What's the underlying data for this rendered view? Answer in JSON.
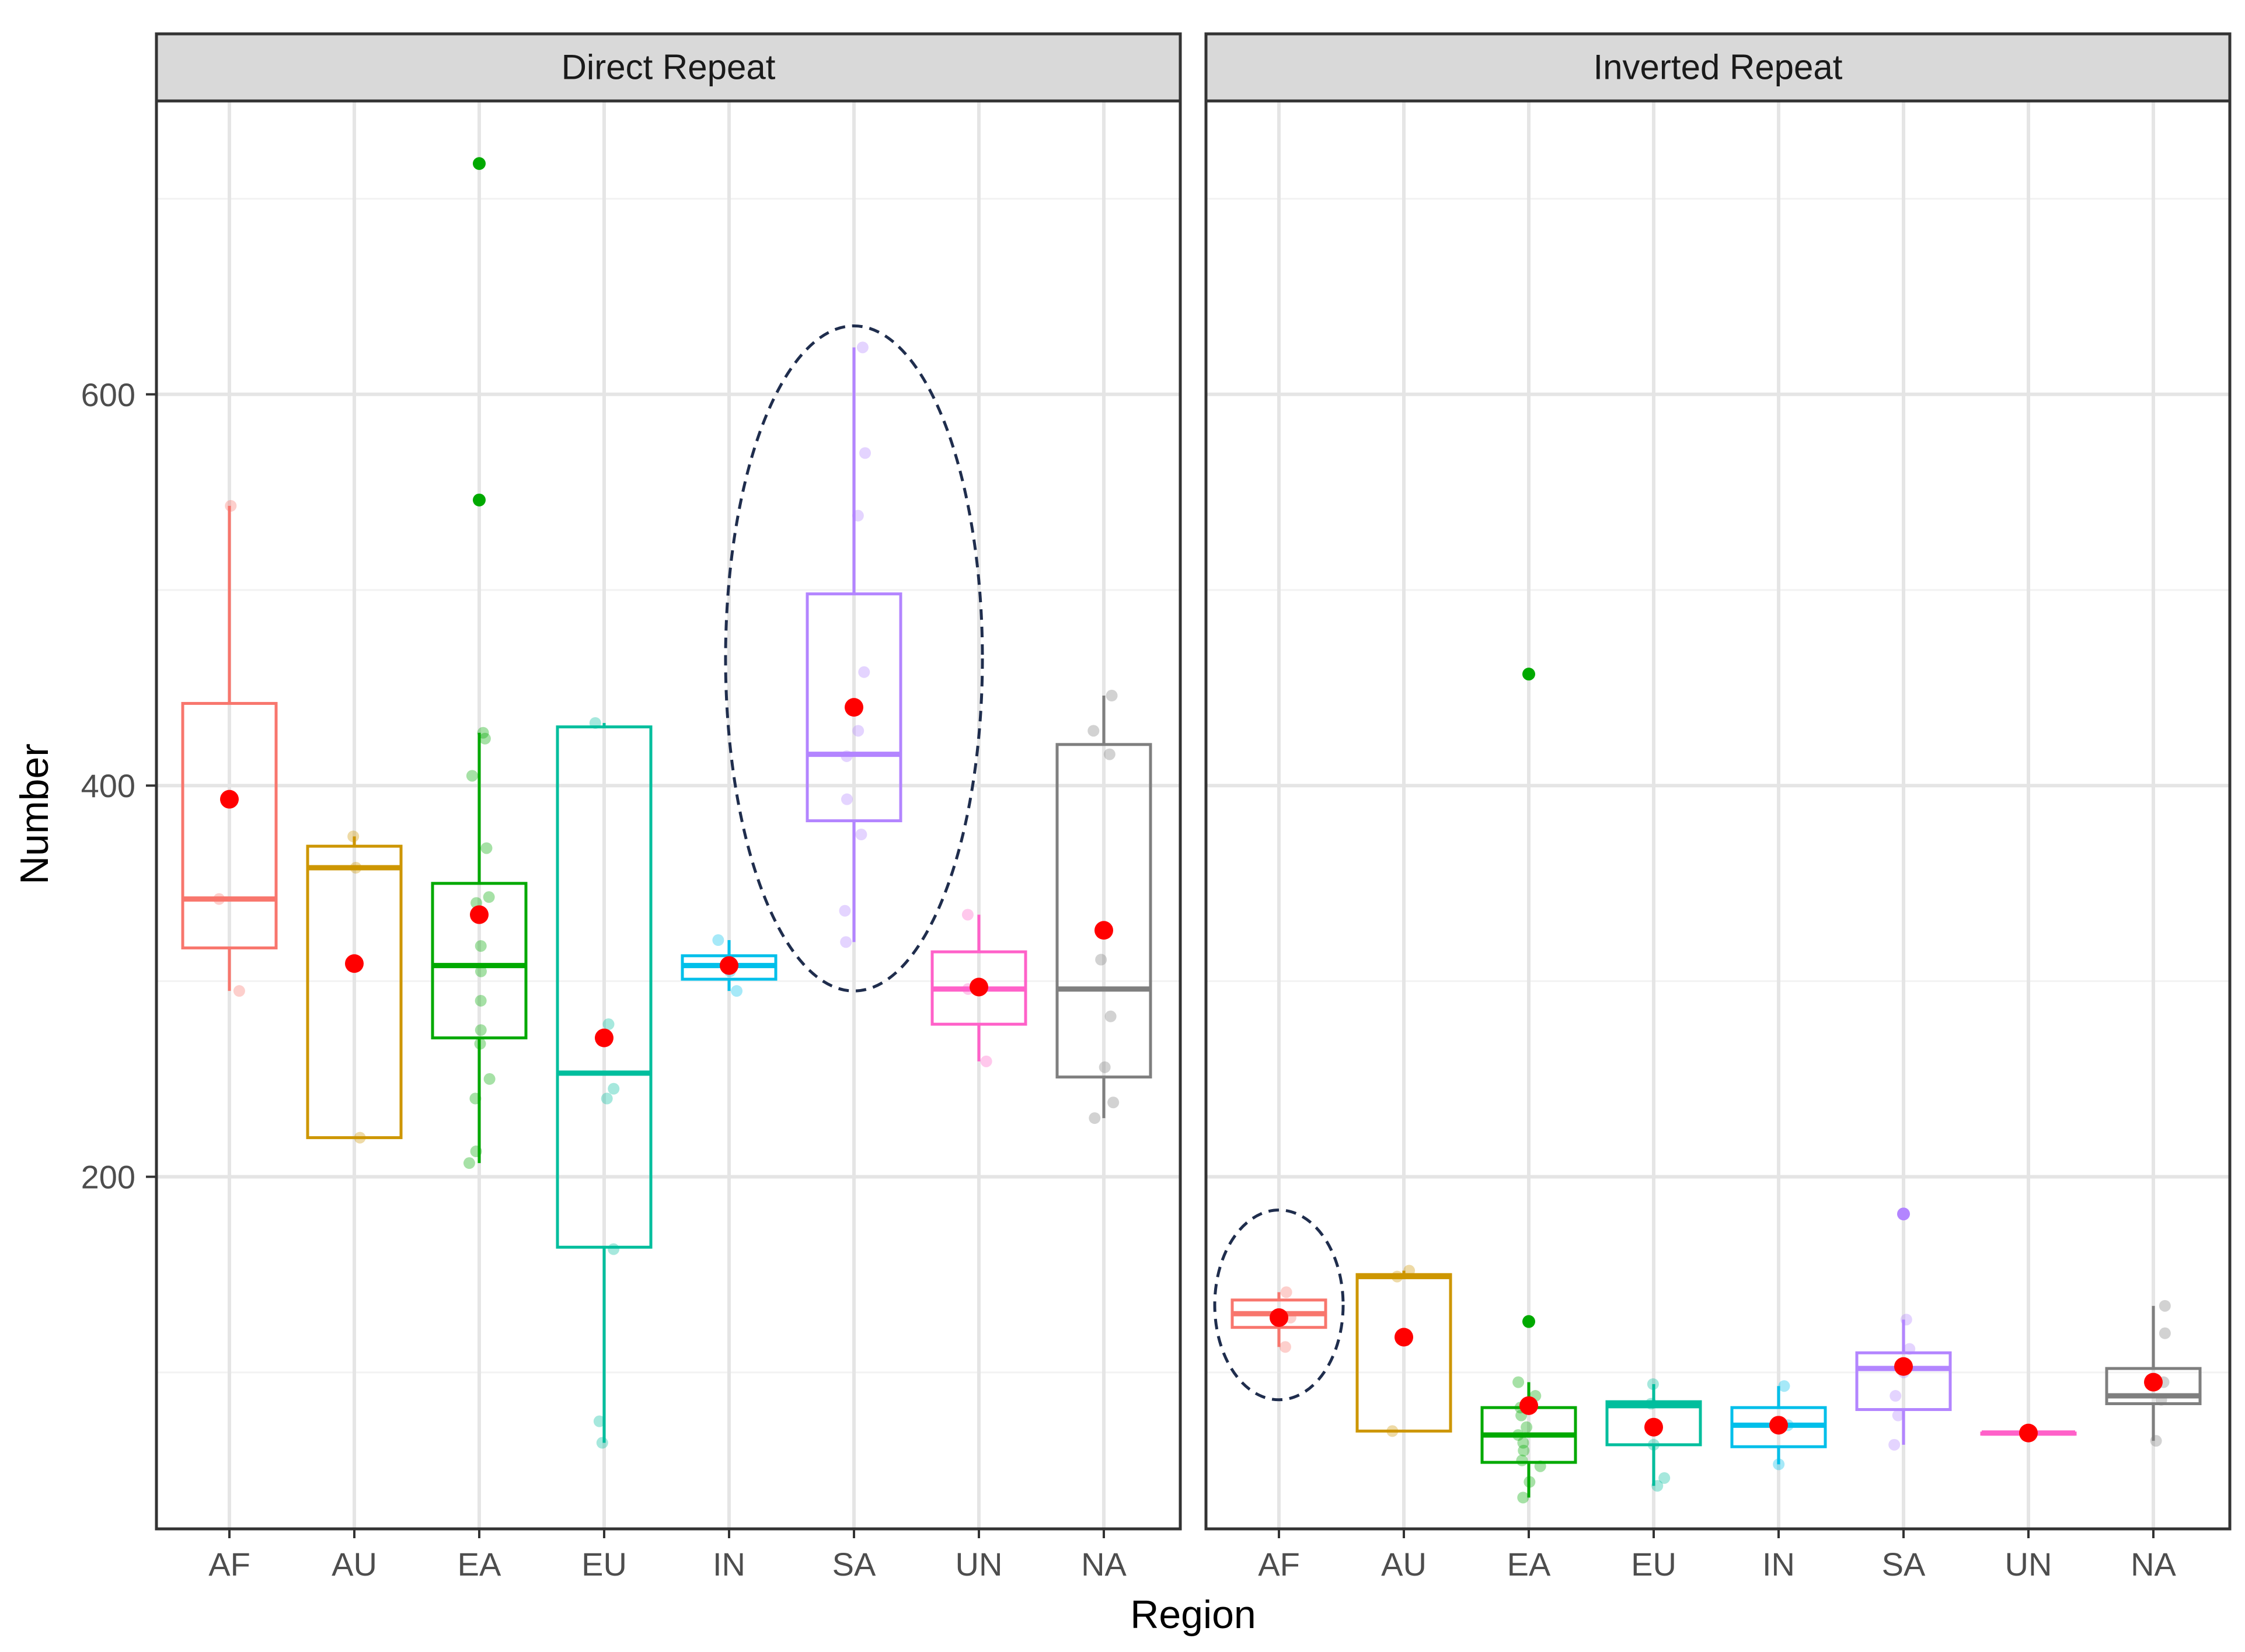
{
  "chart_data": {
    "type": "boxplot",
    "xlabel": "Region",
    "ylabel": "Number",
    "ylim": [
      20,
      750
    ],
    "y_ticks": [
      200,
      400,
      600
    ],
    "categories": [
      "AF",
      "AU",
      "EA",
      "EU",
      "IN",
      "SA",
      "UN",
      "NA"
    ],
    "colors": {
      "AF": "#f8766d",
      "AU": "#cd9600",
      "EA": "#00a900",
      "EU": "#00be9d",
      "IN": "#00bfea",
      "SA": "#b385ff",
      "UN": "#ff61c9",
      "NA": "#7f7f7f"
    },
    "mean_color": "#ff0000",
    "highlight_color": "#1f2d4d",
    "panels": [
      {
        "title": "Direct Repeat",
        "groups": [
          {
            "region": "AF",
            "lower": 295,
            "q1": 317,
            "median": 342,
            "q3": 442,
            "upper": 543,
            "mean": 393,
            "points": [
              295,
              342,
              543
            ],
            "outliers": []
          },
          {
            "region": "AU",
            "lower": 220,
            "q1": 220,
            "median": 358,
            "q3": 369,
            "upper": 374,
            "mean": 309,
            "points": [
              220,
              358,
              374
            ],
            "outliers": []
          },
          {
            "region": "EA",
            "lower": 207,
            "q1": 271,
            "median": 308,
            "q3": 350,
            "upper": 427,
            "mean": 334,
            "points": [
              207,
              213,
              240,
              250,
              268,
              275,
              290,
              305,
              318,
              340,
              343,
              368,
              405,
              424,
              427
            ],
            "outliers": [
              546,
              718
            ]
          },
          {
            "region": "EU",
            "lower": 64,
            "q1": 164,
            "median": 253,
            "q3": 430,
            "upper": 432,
            "mean": 271,
            "points": [
              64,
              75,
              163,
              240,
              245,
              278,
              432
            ],
            "outliers": []
          },
          {
            "region": "IN",
            "lower": 295,
            "q1": 301,
            "median": 308,
            "q3": 313,
            "upper": 321,
            "mean": 308,
            "points": [
              295,
              305,
              321
            ],
            "outliers": []
          },
          {
            "region": "SA",
            "lower": 320,
            "q1": 382,
            "median": 416,
            "q3": 498,
            "upper": 624,
            "mean": 440,
            "points": [
              320,
              336,
              375,
              393,
              415,
              428,
              458,
              538,
              570,
              624
            ],
            "outliers": []
          },
          {
            "region": "UN",
            "lower": 259,
            "q1": 278,
            "median": 296,
            "q3": 315,
            "upper": 334,
            "mean": 297,
            "points": [
              259,
              296,
              334
            ],
            "outliers": []
          },
          {
            "region": "NA",
            "lower": 230,
            "q1": 251,
            "median": 296,
            "q3": 421,
            "upper": 446,
            "mean": 326,
            "points": [
              230,
              238,
              256,
              282,
              311,
              416,
              428,
              446
            ],
            "outliers": []
          }
        ],
        "highlight": {
          "region": "SA",
          "y_low": 295,
          "y_high": 635
        }
      },
      {
        "title": "Inverted Repeat",
        "groups": [
          {
            "region": "AF",
            "lower": 113,
            "q1": 123,
            "median": 130,
            "q3": 137,
            "upper": 141,
            "mean": 128,
            "points": [
              113,
              128,
              141
            ],
            "outliers": []
          },
          {
            "region": "AU",
            "lower": 70,
            "q1": 70,
            "median": 149,
            "q3": 150,
            "upper": 152,
            "mean": 118,
            "points": [
              70,
              149,
              152
            ],
            "outliers": []
          },
          {
            "region": "EA",
            "lower": 36,
            "q1": 54,
            "median": 68,
            "q3": 82,
            "upper": 95,
            "mean": 83,
            "points": [
              36,
              44,
              52,
              55,
              60,
              64,
              68,
              72,
              78,
              82,
              88,
              95
            ],
            "outliers": [
              126,
              457
            ]
          },
          {
            "region": "EU",
            "lower": 42,
            "q1": 63,
            "median": 83,
            "q3": 85,
            "upper": 94,
            "mean": 72,
            "points": [
              42,
              46,
              63,
              84,
              94
            ],
            "outliers": []
          },
          {
            "region": "IN",
            "lower": 53,
            "q1": 62,
            "median": 73,
            "q3": 82,
            "upper": 93,
            "mean": 73,
            "points": [
              53,
              73,
              93
            ],
            "outliers": []
          },
          {
            "region": "SA",
            "lower": 63,
            "q1": 81,
            "median": 102,
            "q3": 110,
            "upper": 127,
            "mean": 103,
            "points": [
              63,
              78,
              88,
              100,
              112,
              127
            ],
            "outliers": [
              181
            ]
          },
          {
            "region": "UN",
            "lower": 69,
            "q1": 69,
            "median": 69,
            "q3": 69,
            "upper": 69,
            "mean": 69,
            "points": [
              69
            ],
            "outliers": []
          },
          {
            "region": "NA",
            "lower": 65,
            "q1": 84,
            "median": 88,
            "q3": 102,
            "upper": 134,
            "mean": 95,
            "points": [
              65,
              86,
              95,
              120,
              134
            ],
            "outliers": []
          }
        ],
        "highlight": {
          "region": "AF",
          "y_low": 86,
          "y_high": 183
        }
      }
    ]
  }
}
